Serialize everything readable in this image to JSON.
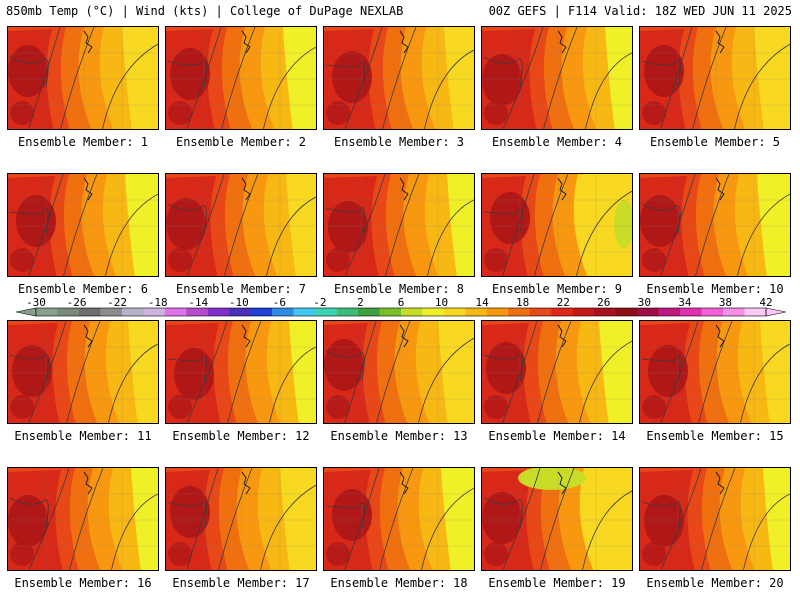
{
  "header": {
    "left": "850mb Temp (°C) | Wind (kts) | College of DuPage NEXLAB",
    "right": "00Z GEFS | F114 Valid: 18Z WED JUN 11 2025"
  },
  "members": [
    {
      "label": "Ensemble Member: 1"
    },
    {
      "label": "Ensemble Member: 2"
    },
    {
      "label": "Ensemble Member: 3"
    },
    {
      "label": "Ensemble Member: 4"
    },
    {
      "label": "Ensemble Member: 5"
    },
    {
      "label": "Ensemble Member: 6"
    },
    {
      "label": "Ensemble Member: 7"
    },
    {
      "label": "Ensemble Member: 8"
    },
    {
      "label": "Ensemble Member: 9"
    },
    {
      "label": "Ensemble Member: 10"
    },
    {
      "label": "Ensemble Member: 11"
    },
    {
      "label": "Ensemble Member: 12"
    },
    {
      "label": "Ensemble Member: 13"
    },
    {
      "label": "Ensemble Member: 14"
    },
    {
      "label": "Ensemble Member: 15"
    },
    {
      "label": "Ensemble Member: 16"
    },
    {
      "label": "Ensemble Member: 17"
    },
    {
      "label": "Ensemble Member: 18"
    },
    {
      "label": "Ensemble Member: 19"
    },
    {
      "label": "Ensemble Member: 20"
    }
  ],
  "colorbar": {
    "ticks": [
      "-30",
      "-26",
      "-22",
      "-18",
      "-14",
      "-10",
      "-6",
      "-2",
      "2",
      "6",
      "10",
      "14",
      "18",
      "22",
      "26",
      "30",
      "34",
      "38",
      "42"
    ],
    "colors": [
      "#8aa08a",
      "#7a8a7a",
      "#6e6e6e",
      "#8c8c8c",
      "#b4b4c8",
      "#ccb4e0",
      "#e070e6",
      "#b44ccc",
      "#8030c8",
      "#4830b8",
      "#2040d8",
      "#2c8ce6",
      "#40c8f0",
      "#3cd2b4",
      "#3cbc78",
      "#40a040",
      "#78c028",
      "#c8dc28",
      "#f0f028",
      "#f8d820",
      "#f8b814",
      "#f89810",
      "#f07010",
      "#e84818",
      "#e02818",
      "#c81818",
      "#a81020",
      "#900c18",
      "#a00c48",
      "#c01880",
      "#e030b0",
      "#f060d8",
      "#f890e8",
      "#fcc8f4"
    ]
  },
  "palette": {
    "dark_red": "#b01818",
    "red": "#d82818",
    "red_orange": "#e84818",
    "orange": "#f07010",
    "orange_light": "#f89810",
    "amber": "#f8b814",
    "gold": "#f8d820",
    "yellow": "#f0f028",
    "yellow_green": "#c8dc28",
    "contour": "#3a3a3a"
  }
}
